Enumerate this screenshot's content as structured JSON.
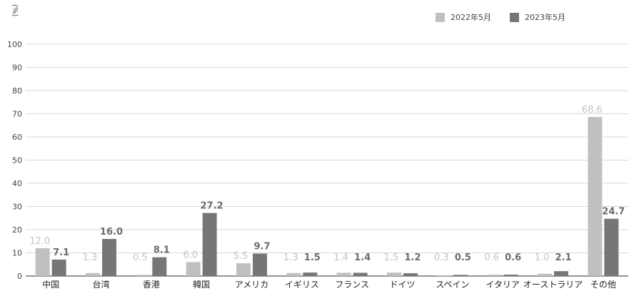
{
  "chart_data": {
    "type": "bar",
    "unit": "(%)",
    "categories": [
      "中国",
      "台湾",
      "香港",
      "韓国",
      "アメリカ",
      "イギリス",
      "フランス",
      "ドイツ",
      "スペイン",
      "イタリア",
      "オーストラリア",
      "その他"
    ],
    "series": [
      {
        "name": "2022年5月",
        "color": "#c0c0c0",
        "values": [
          12.0,
          1.3,
          0.5,
          6.0,
          5.5,
          1.3,
          1.4,
          1.5,
          0.3,
          0.6,
          1.0,
          68.6
        ]
      },
      {
        "name": "2023年5月",
        "color": "#767676",
        "values": [
          7.1,
          16.0,
          8.1,
          27.2,
          9.7,
          1.5,
          1.4,
          1.2,
          0.5,
          0.6,
          2.1,
          24.7
        ]
      }
    ],
    "ylim": [
      0,
      100
    ],
    "yticks": [
      0,
      10,
      20,
      30,
      40,
      50,
      60,
      70,
      80,
      90,
      100
    ],
    "grid": true,
    "legend_position": "top-right"
  }
}
